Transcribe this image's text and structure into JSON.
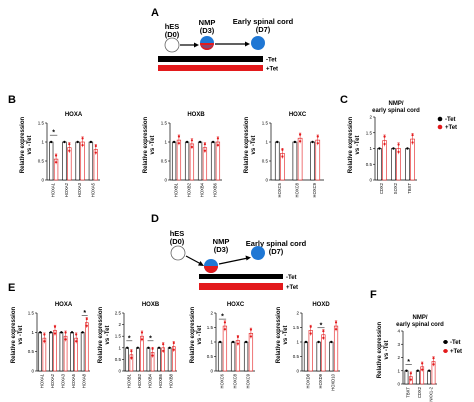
{
  "colors": {
    "untreated": "#000000",
    "treated": "#e31a1c",
    "cell_blue": "#1f77d4",
    "cell_red": "#e31a1c",
    "cell_white": "#ffffff"
  },
  "panels": {
    "A": {
      "label": "A",
      "stages": [
        {
          "name": "hES",
          "day": "(D0)"
        },
        {
          "name": "NMP",
          "day": "(D3)"
        },
        {
          "name": "Early spinal cord",
          "day": "(D7)"
        }
      ],
      "legend": [
        {
          "label": "-Tet",
          "color": "#000000"
        },
        {
          "label": "+Tet",
          "color": "#e31a1c"
        }
      ]
    },
    "D": {
      "label": "D",
      "stages": [
        {
          "name": "hES",
          "day": "(D0)"
        },
        {
          "name": "NMP",
          "day": "(D3)"
        },
        {
          "name": "Early spinal cord",
          "day": "(D7)"
        }
      ],
      "legend": [
        {
          "label": "-Tet",
          "color": "#000000"
        },
        {
          "label": "+Tet",
          "color": "#e31a1c"
        }
      ]
    },
    "B": {
      "label": "B",
      "ylabel_line1": "Relative expression",
      "ylabel_line2": "vs -Tet"
    },
    "C": {
      "label": "C",
      "ylabel_line1": "Relative expression",
      "ylabel_line2": "vs -Tet",
      "legend": [
        {
          "label": "-Tet"
        },
        {
          "label": "+Tet"
        }
      ]
    },
    "E": {
      "label": "E",
      "ylabel_line1": "Relative expression",
      "ylabel_line2": "vs -Tet"
    },
    "F": {
      "label": "F",
      "ylabel_line1": "Relative expression",
      "ylabel_line2": "vs -Tet",
      "legend": [
        {
          "label": "-Tet"
        },
        {
          "label": "+Tet"
        }
      ]
    }
  },
  "chart_data": [
    {
      "id": "B1",
      "panel": "B",
      "type": "bar",
      "title": "HOXA",
      "ylim": [
        0,
        1.5
      ],
      "yticks": [
        "0",
        "0.5",
        "1",
        "1.5"
      ],
      "categories": [
        "HOXA1",
        "HOXA2",
        "HOXA3",
        "HOXA5"
      ],
      "series": [
        {
          "name": "-Tet",
          "values": [
            1,
            1,
            1,
            1
          ]
        },
        {
          "name": "+Tet",
          "values": [
            0.55,
            0.85,
            1.0,
            0.8
          ]
        }
      ],
      "annotations": [
        {
          "category": "HOXA1",
          "text": "*"
        }
      ]
    },
    {
      "id": "B2",
      "panel": "B",
      "type": "bar",
      "title": "HOXB",
      "ylim": [
        0,
        1.5
      ],
      "yticks": [
        "0",
        "0.5",
        "1",
        "1.5"
      ],
      "categories": [
        "HOXB1",
        "HOXB2",
        "HOXB4",
        "HOXB6"
      ],
      "series": [
        {
          "name": "-Tet",
          "values": [
            1,
            1,
            1,
            1
          ]
        },
        {
          "name": "+Tet",
          "values": [
            1.05,
            0.95,
            0.85,
            1.0
          ]
        }
      ],
      "annotations": []
    },
    {
      "id": "B3",
      "panel": "B",
      "type": "bar",
      "title": "HOXC",
      "ylim": [
        0,
        1.5
      ],
      "yticks": [
        "0",
        "0.5",
        "1",
        "1.5"
      ],
      "categories": [
        "HOXC6",
        "HOXC8",
        "HOXC9"
      ],
      "series": [
        {
          "name": "-Tet",
          "values": [
            1,
            1,
            1
          ]
        },
        {
          "name": "+Tet",
          "values": [
            0.7,
            1.1,
            1.05
          ]
        }
      ],
      "annotations": []
    },
    {
      "id": "C1",
      "panel": "C",
      "type": "bar",
      "title_line1": "NMP/",
      "title_line2": "early spinal cord",
      "ylim": [
        0,
        2
      ],
      "yticks": [
        "0",
        "0.5",
        "1",
        "1.5",
        "2"
      ],
      "categories": [
        "CDX2",
        "SOX2",
        "TBXT"
      ],
      "series": [
        {
          "name": "-Tet",
          "values": [
            1,
            1,
            1
          ]
        },
        {
          "name": "+Tet",
          "values": [
            1.25,
            1.0,
            1.3
          ]
        }
      ],
      "annotations": []
    },
    {
      "id": "E1",
      "panel": "E",
      "type": "bar",
      "title": "HOXA",
      "ylim": [
        0,
        1.5
      ],
      "yticks": [
        "0",
        "0.5",
        "1",
        "1.5"
      ],
      "categories": [
        "HOXA1",
        "HOXA2",
        "HOXA3",
        "HOXA5",
        "HOXA8"
      ],
      "series": [
        {
          "name": "-Tet",
          "values": [
            1,
            1,
            1,
            1,
            1
          ]
        },
        {
          "name": "+Tet",
          "values": [
            0.85,
            1.05,
            0.9,
            0.85,
            1.25
          ]
        }
      ],
      "annotations": [
        {
          "category": "HOXA8",
          "text": "*"
        }
      ]
    },
    {
      "id": "E2",
      "panel": "E",
      "type": "bar",
      "title": "HOXB",
      "ylim": [
        0,
        2.5
      ],
      "yticks": [
        "0",
        "0.5",
        "1",
        "1.5",
        "2",
        "2.5"
      ],
      "categories": [
        "HOXB1",
        "HOXB2",
        "HOXB4",
        "HOXB6",
        "HOXB8"
      ],
      "series": [
        {
          "name": "-Tet",
          "values": [
            1,
            1,
            1,
            1,
            1
          ]
        },
        {
          "name": "+Tet",
          "values": [
            0.7,
            1.5,
            0.8,
            1.0,
            1.05
          ]
        }
      ],
      "annotations": [
        {
          "category": "HOXB1",
          "text": "*"
        },
        {
          "category": "HOXB4",
          "text": "*"
        }
      ]
    },
    {
      "id": "E3",
      "panel": "E",
      "type": "bar",
      "title": "HOXC",
      "ylim": [
        0,
        2
      ],
      "yticks": [
        "0",
        "0.5",
        "1",
        "1.5",
        "2"
      ],
      "categories": [
        "HOXC6",
        "HOXC8",
        "HOXC9"
      ],
      "series": [
        {
          "name": "-Tet",
          "values": [
            1,
            1,
            1
          ]
        },
        {
          "name": "+Tet",
          "values": [
            1.55,
            1.05,
            1.3
          ]
        }
      ],
      "annotations": [
        {
          "category": "HOXC6",
          "text": "*"
        }
      ]
    },
    {
      "id": "E4",
      "panel": "E",
      "type": "bar",
      "title": "HOXD",
      "ylim": [
        0,
        2
      ],
      "yticks": [
        "0",
        "0.5",
        "1",
        "1.5",
        "2"
      ],
      "categories": [
        "HOXD8",
        "HOXD9",
        "HOXD10"
      ],
      "series": [
        {
          "name": "-Tet",
          "values": [
            1,
            1,
            1
          ]
        },
        {
          "name": "+Tet",
          "values": [
            1.4,
            1.25,
            1.55
          ]
        }
      ],
      "annotations": [
        {
          "category": "HOXD9",
          "text": "*"
        }
      ]
    },
    {
      "id": "F1",
      "panel": "F",
      "type": "bar",
      "title_line1": "NMP/",
      "title_line2": "early spinal cord",
      "ylim": [
        0,
        4
      ],
      "yticks": [
        "0",
        "1",
        "2",
        "3",
        "4"
      ],
      "categories": [
        "TBXT",
        "CDX2",
        "NKX1-2"
      ],
      "series": [
        {
          "name": "-Tet",
          "values": [
            1,
            1,
            1
          ]
        },
        {
          "name": "+Tet",
          "values": [
            0.55,
            1.3,
            1.7
          ]
        }
      ],
      "annotations": [
        {
          "category": "TBXT",
          "text": "*"
        }
      ]
    }
  ]
}
